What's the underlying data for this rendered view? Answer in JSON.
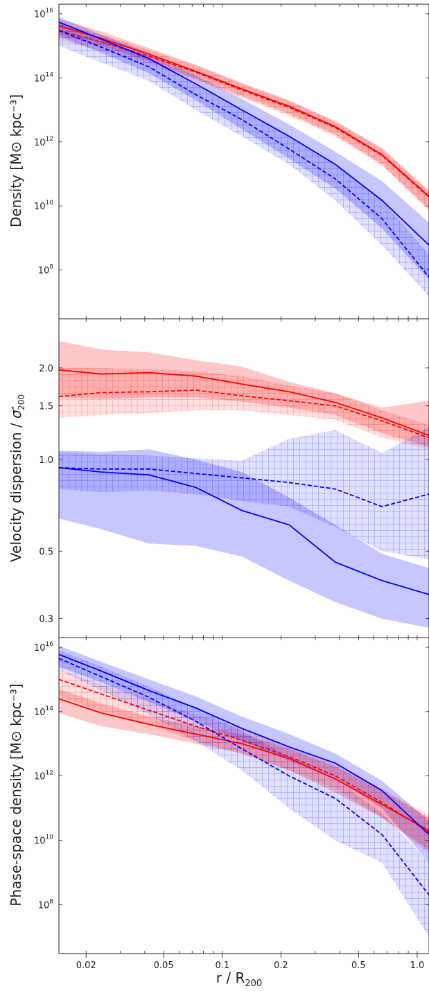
{
  "chart_data": [
    {
      "type": "line",
      "panel": "density",
      "ylabel": "Density [M⊙ kpc⁻³]",
      "yscale": "log",
      "xscale": "log",
      "ylim": [
        3000000.0,
        2e+16
      ],
      "xlim": [
        0.0145,
        1.15
      ],
      "yticks": [
        {
          "value": 1e+16,
          "base": "10",
          "exp": "16"
        },
        {
          "value": 100000000000000.0,
          "base": "10",
          "exp": "14"
        },
        {
          "value": 1000000000000.0,
          "base": "10",
          "exp": "12"
        },
        {
          "value": 10000000000.0,
          "base": "10",
          "exp": "10"
        },
        {
          "value": 100000000.0,
          "base": "10",
          "exp": "8"
        }
      ],
      "x": [
        0.0145,
        0.024,
        0.042,
        0.073,
        0.126,
        0.22,
        0.38,
        0.66,
        1.15
      ],
      "series": [
        {
          "color": "#ff0000",
          "style": "solid",
          "values": [
            4200000000000000.0,
            1700000000000000.0,
            550000000000000.0,
            160000000000000.0,
            45000000000000.0,
            13000000000000.0,
            3000000000000.0,
            400000000000.0,
            20000000000.0
          ],
          "band": [
            [
              2200000000000000.0,
              7000000000000000.0
            ],
            [
              1000000000000000.0,
              2800000000000000.0
            ],
            [
              330000000000000.0,
              850000000000000.0
            ],
            [
              95000000000000.0,
              260000000000000.0
            ],
            [
              27000000000000.0,
              70000000000000.0
            ],
            [
              7500000000000.0,
              20000000000000.0
            ],
            [
              1700000000000.0,
              4500000000000.0
            ],
            [
              200000000000.0,
              650000000000.0
            ],
            [
              8000000000.0,
              30000000000.0
            ]
          ]
        },
        {
          "color": "#ff0000",
          "style": "dashed",
          "values": [
            3000000000000000.0,
            1300000000000000.0,
            480000000000000.0,
            150000000000000.0,
            42000000000000.0,
            12000000000000.0,
            2800000000000.0,
            380000000000.0,
            19000000000.0
          ],
          "band": [
            [
              1500000000000000.0,
              5000000000000000.0
            ],
            [
              700000000000000.0,
              2200000000000000.0
            ],
            [
              280000000000000.0,
              750000000000000.0
            ],
            [
              85000000000000.0,
              240000000000000.0
            ],
            [
              24000000000000.0,
              65000000000000.0
            ],
            [
              6500000000000.0,
              19000000000000.0
            ],
            [
              1500000000000.0,
              4200000000000.0
            ],
            [
              180000000000.0,
              600000000000.0
            ],
            [
              7000000000.0,
              28000000000.0
            ]
          ]
        },
        {
          "color": "#0000ff",
          "style": "solid",
          "values": [
            5500000000000000.0,
            1600000000000000.0,
            400000000000000.0,
            65000000000000.0,
            10000000000000.0,
            1500000000000.0,
            200000000000.0,
            15000000000.0,
            600000000.0
          ],
          "band": [
            [
              2000000000000000.0,
              8000000000000000.0
            ],
            [
              600000000000000.0,
              2200000000000000.0
            ],
            [
              140000000000000.0,
              600000000000000.0
            ],
            [
              20000000000000.0,
              120000000000000.0
            ],
            [
              2500000000000.0,
              22000000000000.0
            ],
            [
              300000000000.0,
              3500000000000.0
            ],
            [
              35000000000.0,
              500000000000.0
            ],
            [
              2000000000.0,
              60000000000.0
            ],
            [
              50000000.0,
              3000000000.0
            ]
          ]
        },
        {
          "color": "#0000ff",
          "style": "dashed",
          "values": [
            3000000000000000.0,
            900000000000000.0,
            220000000000000.0,
            30000000000000.0,
            5000000000000.0,
            600000000000.0,
            70000000000.0,
            4000000000.0,
            60000000.0
          ],
          "band": [
            [
              1000000000000000.0,
              5500000000000000.0
            ],
            [
              300000000000000.0,
              1500000000000000.0
            ],
            [
              80000000000000.0,
              400000000000000.0
            ],
            [
              10000000000000.0,
              60000000000000.0
            ],
            [
              1500000000000.0,
              10000000000000.0
            ],
            [
              200000000000.0,
              1500000000000.0
            ],
            [
              15000000000.0,
              200000000000.0
            ],
            [
              600000000.0,
              15000000000.0
            ],
            [
              15000000.0,
              300000000.0
            ]
          ]
        }
      ]
    },
    {
      "type": "line",
      "panel": "velocity-dispersion",
      "ylabel": "Velocity dispersion / σ*₂₀₀",
      "ylabel_main": "Velocity dispersion / ",
      "ylabel_sym": "σ",
      "ylabel_sup": "⋆",
      "ylabel_sub": "200",
      "yscale": "log",
      "xscale": "log",
      "ylim": [
        0.26,
        2.9
      ],
      "xlim": [
        0.0145,
        1.15
      ],
      "yticks": [
        {
          "value": 2.0,
          "label": "2.0"
        },
        {
          "value": 1.5,
          "label": "1.5"
        },
        {
          "value": 1.0,
          "label": "1.0"
        },
        {
          "value": 0.5,
          "label": "0.5"
        },
        {
          "value": 0.3,
          "label": "0.3"
        }
      ],
      "x": [
        0.0145,
        0.024,
        0.042,
        0.073,
        0.126,
        0.22,
        0.38,
        0.66,
        1.15
      ],
      "series": [
        {
          "color": "#ff0000",
          "style": "solid",
          "values": [
            1.97,
            1.91,
            1.93,
            1.88,
            1.77,
            1.67,
            1.54,
            1.37,
            1.2
          ],
          "band": [
            [
              1.6,
              2.45
            ],
            [
              1.58,
              2.3
            ],
            [
              1.6,
              2.25
            ],
            [
              1.6,
              2.12
            ],
            [
              1.55,
              2.02
            ],
            [
              1.48,
              1.8
            ],
            [
              1.4,
              1.65
            ],
            [
              1.22,
              1.48
            ],
            [
              1.1,
              1.56
            ]
          ]
        },
        {
          "color": "#ff0000",
          "style": "dashed",
          "values": [
            1.61,
            1.66,
            1.67,
            1.69,
            1.62,
            1.56,
            1.5,
            1.34,
            1.18
          ],
          "band": [
            [
              1.37,
              2.0
            ],
            [
              1.4,
              2.0
            ],
            [
              1.42,
              1.98
            ],
            [
              1.45,
              1.95
            ],
            [
              1.45,
              1.88
            ],
            [
              1.4,
              1.75
            ],
            [
              1.35,
              1.65
            ],
            [
              1.18,
              1.45
            ],
            [
              1.08,
              1.3
            ]
          ]
        },
        {
          "color": "#0000ff",
          "style": "solid",
          "values": [
            0.94,
            0.91,
            0.89,
            0.81,
            0.68,
            0.61,
            0.46,
            0.4,
            0.36
          ],
          "band": [
            [
              0.64,
              1.07
            ],
            [
              0.59,
              1.06
            ],
            [
              0.53,
              1.08
            ],
            [
              0.52,
              1.0
            ],
            [
              0.48,
              0.91
            ],
            [
              0.4,
              0.75
            ],
            [
              0.34,
              0.61
            ],
            [
              0.3,
              0.49
            ],
            [
              0.28,
              0.44
            ]
          ]
        },
        {
          "color": "#0000ff",
          "style": "dashed",
          "values": [
            0.94,
            0.93,
            0.93,
            0.9,
            0.87,
            0.84,
            0.8,
            0.7,
            0.77
          ],
          "band": [
            [
              0.8,
              1.06
            ],
            [
              0.78,
              1.04
            ],
            [
              0.79,
              1.03
            ],
            [
              0.77,
              1.01
            ],
            [
              0.73,
              0.99
            ],
            [
              0.7,
              1.17
            ],
            [
              0.6,
              1.25
            ],
            [
              0.5,
              1.05
            ],
            [
              0.47,
              1.28
            ]
          ]
        }
      ]
    },
    {
      "type": "line",
      "panel": "phase-space-density",
      "ylabel": "Phase-space density [M⊙ kpc⁻³]",
      "yscale": "log",
      "xscale": "log",
      "ylim": [
        3000000.0,
        2e+16
      ],
      "xlim": [
        0.0145,
        1.15
      ],
      "yticks": [
        {
          "value": 1e+16,
          "base": "10",
          "exp": "16"
        },
        {
          "value": 100000000000000.0,
          "base": "10",
          "exp": "14"
        },
        {
          "value": 1000000000000.0,
          "base": "10",
          "exp": "12"
        },
        {
          "value": 10000000000.0,
          "base": "10",
          "exp": "10"
        },
        {
          "value": 100000000.0,
          "base": "10",
          "exp": "8"
        }
      ],
      "xticks": [
        {
          "value": 0.02,
          "label": "0.02"
        },
        {
          "value": 0.05,
          "label": "0.05"
        },
        {
          "value": 0.1,
          "label": "0.1"
        },
        {
          "value": 0.2,
          "label": "0.2"
        },
        {
          "value": 0.5,
          "label": "0.5"
        },
        {
          "value": 1.0,
          "label": "1.0"
        }
      ],
      "xlabel": "r / R200",
      "xlabel_main": "r / R",
      "xlabel_sub": "200",
      "x": [
        0.0145,
        0.024,
        0.042,
        0.073,
        0.126,
        0.22,
        0.38,
        0.66,
        1.15
      ],
      "series": [
        {
          "color": "#ff0000",
          "style": "solid",
          "values": [
            250000000000000.0,
            90000000000000.0,
            40000000000000.0,
            20000000000000.0,
            10000000000000.0,
            3500000000000.0,
            800000000000.0,
            130000000000.0,
            20000000000.0
          ],
          "band": [
            [
              90000000000000.0,
              500000000000000.0
            ],
            [
              35000000000000.0,
              180000000000000.0
            ],
            [
              20000000000000.0,
              70000000000000.0
            ],
            [
              10000000000000.0,
              35000000000000.0
            ],
            [
              5000000000000.0,
              20000000000000.0
            ],
            [
              1500000000000.0,
              7000000000000.0
            ],
            [
              300000000000.0,
              2000000000000.0
            ],
            [
              50000000000.0,
              350000000000.0
            ],
            [
              5000000000.0,
              50000000000.0
            ]
          ]
        },
        {
          "color": "#ff0000",
          "style": "dashed",
          "values": [
            1000000000000000.0,
            350000000000000.0,
            110000000000000.0,
            35000000000000.0,
            13000000000000.0,
            4000000000000.0,
            1000000000000.0,
            150000000000.0,
            18000000000.0
          ],
          "band": [
            [
              300000000000000.0,
              2000000000000000.0
            ],
            [
              100000000000000.0,
              700000000000000.0
            ],
            [
              40000000000000.0,
              250000000000000.0
            ],
            [
              12000000000000.0,
              80000000000000.0
            ],
            [
              5000000000000.0,
              30000000000000.0
            ],
            [
              1500000000000.0,
              8000000000000.0
            ],
            [
              400000000000.0,
              2500000000000.0
            ],
            [
              50000000000.0,
              400000000000.0
            ],
            [
              4000000000.0,
              60000000000.0
            ]
          ]
        },
        {
          "color": "#0000ff",
          "style": "solid",
          "values": [
            6000000000000000.0,
            1800000000000000.0,
            450000000000000.0,
            130000000000000.0,
            30000000000000.0,
            8000000000000.0,
            2500000000000.0,
            350000000000.0,
            15000000000.0
          ],
          "band": [
            [
              2500000000000000.0,
              1.1e+16
            ],
            [
              800000000000000.0,
              3500000000000000.0
            ],
            [
              200000000000000.0,
              1000000000000000.0
            ],
            [
              50000000000000.0,
              300000000000000.0
            ],
            [
              12000000000000.0,
              70000000000000.0
            ],
            [
              3000000000000.0,
              20000000000000.0
            ],
            [
              800000000000.0,
              5000000000000.0
            ],
            [
              100000000000.0,
              700000000000.0
            ],
            [
              2000000000.0,
              40000000000.0
            ]
          ]
        },
        {
          "color": "#0000ff",
          "style": "dashed",
          "values": [
            4500000000000000.0,
            1200000000000000.0,
            280000000000000.0,
            50000000000000.0,
            7000000000000.0,
            1000000000000.0,
            200000000000.0,
            15000000000.0,
            200000000.0
          ],
          "band": [
            [
              2000000000000000.0,
              8000000000000000.0
            ],
            [
              450000000000000.0,
              2500000000000000.0
            ],
            [
              80000000000000.0,
              600000000000000.0
            ],
            [
              12000000000000.0,
              130000000000000.0
            ],
            [
              1500000000000.0,
              25000000000000.0
            ],
            [
              100000000000.0,
              4000000000000.0
            ],
            [
              10000000000.0,
              800000000000.0
            ],
            [
              2000000000.0,
              70000000000.0
            ],
            [
              10000000.0,
              2000000000.0
            ]
          ]
        }
      ]
    }
  ]
}
